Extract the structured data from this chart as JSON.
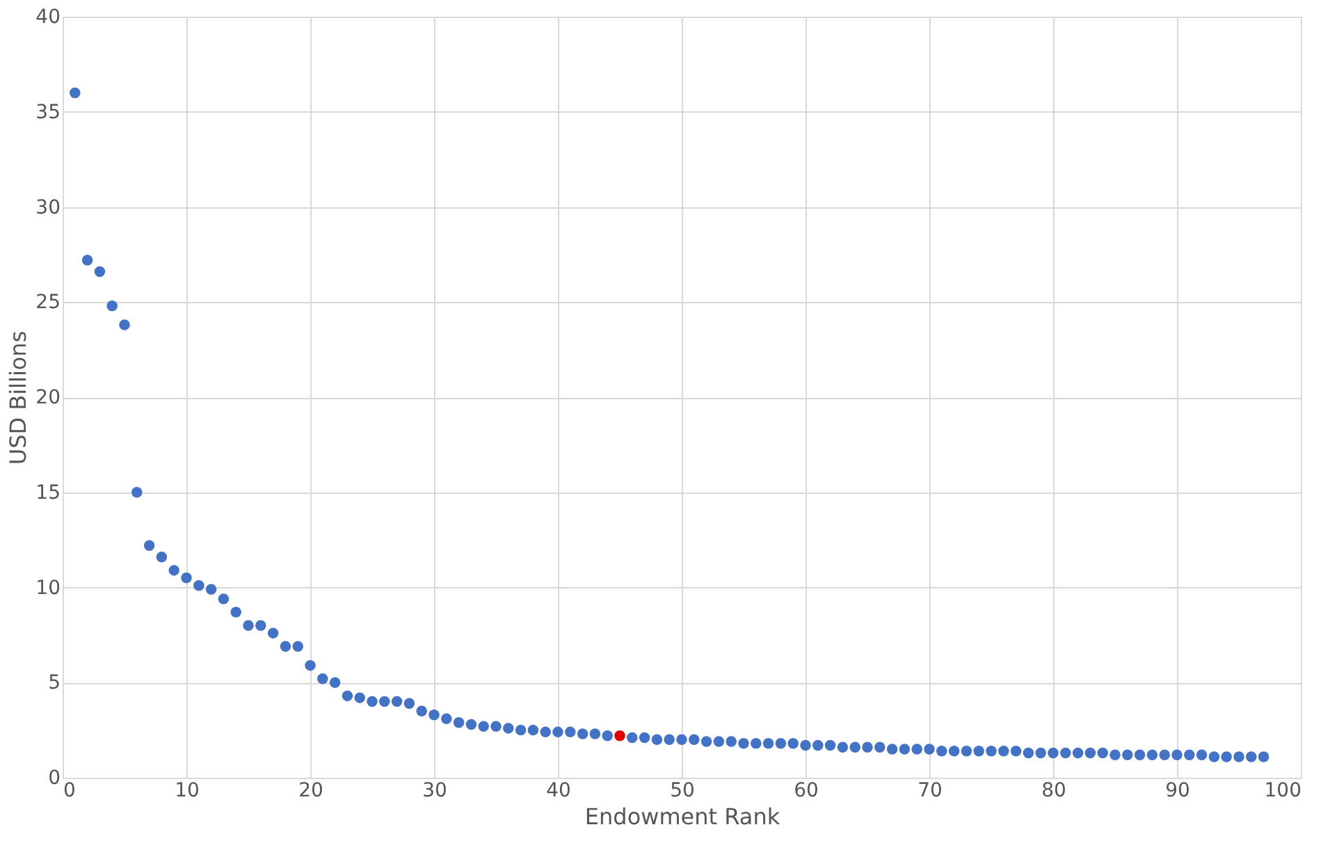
{
  "chart_data": {
    "type": "scatter",
    "xlabel": "Endowment Rank",
    "ylabel": "USD Billions",
    "xlim": [
      0,
      100
    ],
    "ylim": [
      0,
      40
    ],
    "xticks": [
      0,
      10,
      20,
      30,
      40,
      50,
      60,
      70,
      80,
      90,
      100
    ],
    "yticks": [
      0,
      5,
      10,
      15,
      20,
      25,
      30,
      35,
      40
    ],
    "grid": true,
    "marker": "circle",
    "series": [
      {
        "color": "#4472c4",
        "x": [
          1,
          2,
          3,
          4,
          5,
          6,
          7,
          8,
          9,
          10,
          11,
          12,
          13,
          14,
          15,
          16,
          17,
          18,
          19,
          20,
          21,
          22,
          23,
          24,
          25,
          26,
          27,
          28,
          29,
          30,
          31,
          32,
          33,
          34,
          35,
          36,
          37,
          38,
          39,
          40,
          41,
          42,
          43,
          44,
          46,
          47,
          48,
          49,
          50,
          51,
          52,
          53,
          54,
          55,
          56,
          57,
          58,
          59,
          60,
          61,
          62,
          63,
          64,
          65,
          66,
          67,
          68,
          69,
          70,
          71,
          72,
          73,
          74,
          75,
          76,
          77,
          78,
          79,
          80,
          81,
          82,
          83,
          84,
          85,
          86,
          87,
          88,
          89,
          90,
          91,
          92,
          93,
          94,
          95,
          96,
          97
        ],
        "values": [
          36.0,
          27.2,
          26.6,
          24.8,
          23.8,
          15.0,
          12.2,
          11.6,
          10.9,
          10.5,
          10.1,
          9.9,
          9.4,
          8.7,
          8.0,
          8.0,
          7.6,
          6.9,
          6.9,
          5.9,
          5.2,
          5.0,
          4.3,
          4.2,
          4.0,
          4.0,
          4.0,
          3.9,
          3.5,
          3.3,
          3.1,
          2.9,
          2.8,
          2.7,
          2.7,
          2.6,
          2.5,
          2.5,
          2.4,
          2.4,
          2.4,
          2.3,
          2.3,
          2.2,
          2.1,
          2.1,
          2.0,
          2.0,
          2.0,
          2.0,
          1.9,
          1.9,
          1.9,
          1.8,
          1.8,
          1.8,
          1.8,
          1.8,
          1.7,
          1.7,
          1.7,
          1.6,
          1.6,
          1.6,
          1.6,
          1.5,
          1.5,
          1.5,
          1.5,
          1.4,
          1.4,
          1.4,
          1.4,
          1.4,
          1.4,
          1.4,
          1.3,
          1.3,
          1.3,
          1.3,
          1.3,
          1.3,
          1.3,
          1.2,
          1.2,
          1.2,
          1.2,
          1.2,
          1.2,
          1.2,
          1.2,
          1.1,
          1.1,
          1.1,
          1.1,
          1.1
        ]
      },
      {
        "color": "#e00000",
        "x": [
          45
        ],
        "values": [
          2.2
        ]
      }
    ]
  }
}
